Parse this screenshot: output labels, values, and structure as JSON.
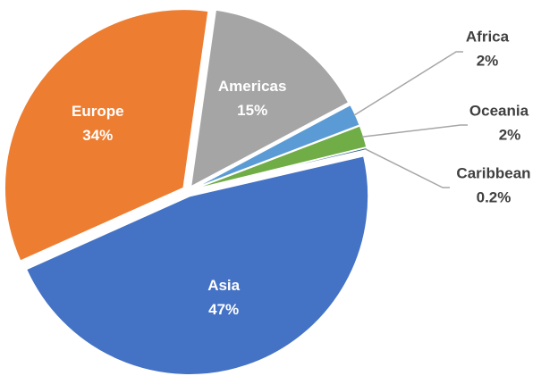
{
  "chart_data": {
    "type": "pie",
    "categories": [
      "Americas",
      "Africa",
      "Oceania",
      "Caribbean",
      "Asia",
      "Europe"
    ],
    "values": [
      15,
      2,
      2,
      0.2,
      47,
      34
    ],
    "value_labels": [
      "15%",
      "2%",
      "2%",
      "0.2%",
      "47%",
      "34%"
    ],
    "colors": [
      "#a5a5a5",
      "#5b9bd5",
      "#70ad47",
      "#2e5f8f",
      "#4472c4",
      "#ed7d31"
    ]
  }
}
